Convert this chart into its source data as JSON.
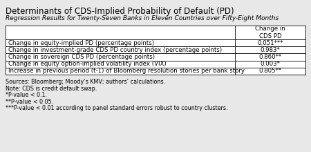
{
  "title": "Determinants of CDS-Implied Probability of Default (PD)",
  "subtitle": "Regression Results for Twenty-Seven Banks in Eleven Countries over Fifty-Eight Months",
  "col_header": "Change in\nCDS PD",
  "rows": [
    [
      "Change in equity-implied PD (percentage points)",
      "0.051***"
    ],
    [
      "Change in investment-grade CDS PD country index (percentage points)",
      "0.983*"
    ],
    [
      "Change in sovereign CDS PD (percentage points)",
      "0.860**"
    ],
    [
      "Change in equity option-implied volatility index (VIX)",
      "0.003*"
    ],
    [
      "Increase in previous period (t-1) of Bloomberg resolution stories per bank story",
      "0.805**"
    ]
  ],
  "footnotes": [
    "Sources: Bloomberg; Moody’s KMV; authors’ calculations.",
    "Note: CDS is credit default swap.",
    "*P-value < 0.1.",
    "**P-value < 0.05.",
    "***P-value < 0.01 according to panel standard errors robust to country clusters."
  ],
  "bg_color": "#e8e8e8",
  "table_bg": "#ffffff",
  "line_color": "#000000",
  "title_fontsize": 8.5,
  "subtitle_fontsize": 6.5,
  "body_fontsize": 6.2,
  "footnote_fontsize": 5.8
}
